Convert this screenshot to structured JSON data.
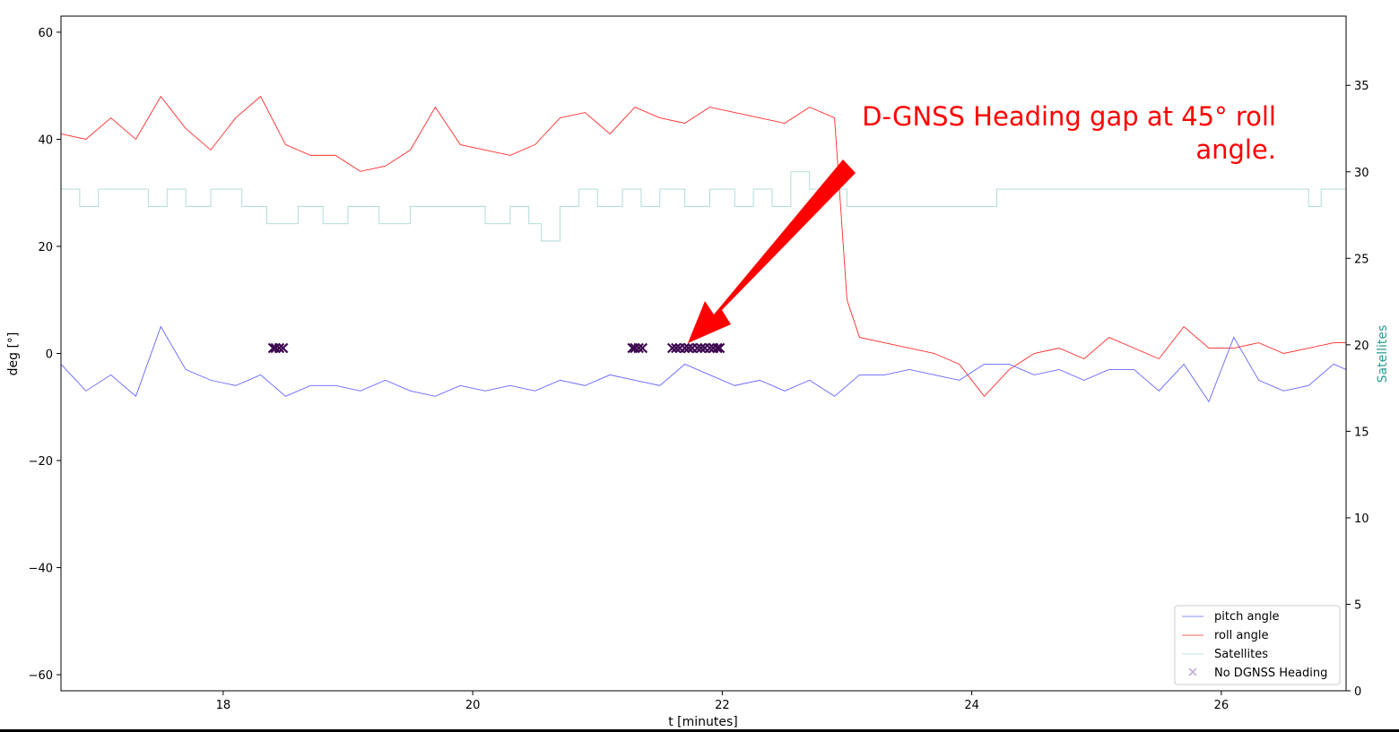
{
  "chart_data": {
    "type": "line",
    "xlabel": "t [minutes]",
    "ylabel": "deg [°]",
    "y2label": "Satellites",
    "xlim": [
      16.7,
      27.0
    ],
    "ylim": [
      -63,
      63
    ],
    "y2lim": [
      0,
      39
    ],
    "xticks": [
      18,
      20,
      22,
      24,
      26
    ],
    "yticks": [
      -60,
      -40,
      -20,
      0,
      20,
      40,
      60
    ],
    "y2ticks": [
      0,
      5,
      10,
      15,
      20,
      25,
      30,
      35
    ],
    "grid": false,
    "legend_position": "lower-right",
    "annotation": {
      "lines": [
        "D-GNSS Heading gap at 45° roll",
        "angle."
      ],
      "arrow_target": {
        "x": 21.7,
        "y": 1
      },
      "color": "#ff0000"
    },
    "series": [
      {
        "name": "pitch angle",
        "color": "#6666ff",
        "axis": "left",
        "x": [
          16.7,
          16.9,
          17.1,
          17.3,
          17.5,
          17.7,
          17.9,
          18.1,
          18.3,
          18.5,
          18.7,
          18.9,
          19.1,
          19.3,
          19.5,
          19.7,
          19.9,
          20.1,
          20.3,
          20.5,
          20.7,
          20.9,
          21.1,
          21.3,
          21.5,
          21.7,
          21.9,
          22.1,
          22.3,
          22.5,
          22.7,
          22.9,
          23.1,
          23.3,
          23.5,
          23.7,
          23.9,
          24.1,
          24.3,
          24.5,
          24.7,
          24.9,
          25.1,
          25.3,
          25.5,
          25.7,
          25.9,
          26.1,
          26.3,
          26.5,
          26.7,
          26.9,
          27.0
        ],
        "y": [
          -2,
          -7,
          -4,
          -8,
          5,
          -3,
          -5,
          -6,
          -4,
          -8,
          -6,
          -6,
          -7,
          -5,
          -7,
          -8,
          -6,
          -7,
          -6,
          -7,
          -5,
          -6,
          -4,
          -5,
          -6,
          -2,
          -4,
          -6,
          -5,
          -7,
          -5,
          -8,
          -4,
          -4,
          -3,
          -4,
          -5,
          -2,
          -2,
          -4,
          -3,
          -5,
          -3,
          -3,
          -7,
          -2,
          -9,
          3,
          -5,
          -7,
          -6,
          -2,
          -3
        ]
      },
      {
        "name": "roll angle",
        "color": "#ff2b2b",
        "axis": "left",
        "x": [
          16.7,
          16.9,
          17.1,
          17.3,
          17.5,
          17.7,
          17.9,
          18.1,
          18.3,
          18.5,
          18.7,
          18.9,
          19.1,
          19.3,
          19.5,
          19.7,
          19.9,
          20.1,
          20.3,
          20.5,
          20.7,
          20.9,
          21.1,
          21.3,
          21.5,
          21.7,
          21.9,
          22.1,
          22.3,
          22.5,
          22.7,
          22.9,
          23.0,
          23.1,
          23.3,
          23.5,
          23.7,
          23.9,
          24.1,
          24.3,
          24.5,
          24.7,
          24.9,
          25.1,
          25.3,
          25.5,
          25.7,
          25.9,
          26.1,
          26.3,
          26.5,
          26.7,
          26.9,
          27.0
        ],
        "y": [
          41,
          40,
          44,
          40,
          48,
          42,
          38,
          44,
          48,
          39,
          37,
          37,
          34,
          35,
          38,
          46,
          39,
          38,
          37,
          39,
          44,
          45,
          41,
          46,
          44,
          43,
          46,
          45,
          44,
          43,
          46,
          44,
          10,
          3,
          2,
          1,
          0,
          -2,
          -8,
          -3,
          0,
          1,
          -1,
          3,
          1,
          -1,
          5,
          1,
          1,
          2,
          0,
          1,
          2,
          2
        ]
      },
      {
        "name": "Satellites",
        "color": "#a9d9d4",
        "axis": "right",
        "step": true,
        "x": [
          16.7,
          16.85,
          17.0,
          17.2,
          17.4,
          17.55,
          17.7,
          17.9,
          18.15,
          18.35,
          18.6,
          18.8,
          19.0,
          19.25,
          19.5,
          19.7,
          19.9,
          20.1,
          20.3,
          20.45,
          20.55,
          20.7,
          20.85,
          21.0,
          21.2,
          21.35,
          21.5,
          21.7,
          21.9,
          22.1,
          22.25,
          22.4,
          22.55,
          22.7,
          22.85,
          23.0,
          23.35,
          23.7,
          24.2,
          24.5,
          25.0,
          25.5,
          26.0,
          26.5,
          26.7,
          26.8,
          27.0
        ],
        "y": [
          29,
          28,
          29,
          29,
          28,
          29,
          28,
          29,
          28,
          27,
          28,
          27,
          28,
          27,
          28,
          28,
          28,
          27,
          28,
          27,
          26,
          28,
          29,
          28,
          29,
          28,
          29,
          28,
          29,
          28,
          29,
          28,
          30,
          29,
          29,
          28,
          28,
          28,
          29,
          29,
          29,
          29,
          29,
          29,
          28,
          29,
          29
        ]
      },
      {
        "name": "No DGNSS Heading",
        "color": "#3d0a51",
        "axis": "left",
        "marker": "x",
        "x": [
          18.4,
          18.42,
          18.45,
          18.48,
          21.28,
          21.3,
          21.33,
          21.36,
          21.6,
          21.63,
          21.66,
          21.7,
          21.73,
          21.76,
          21.8,
          21.83,
          21.86,
          21.9,
          21.93,
          21.96,
          21.98
        ],
        "y": [
          1,
          1,
          1,
          1,
          1,
          1,
          1,
          1,
          1,
          1,
          1,
          1,
          1,
          1,
          1,
          1,
          1,
          1,
          1,
          1,
          1
        ]
      }
    ]
  }
}
